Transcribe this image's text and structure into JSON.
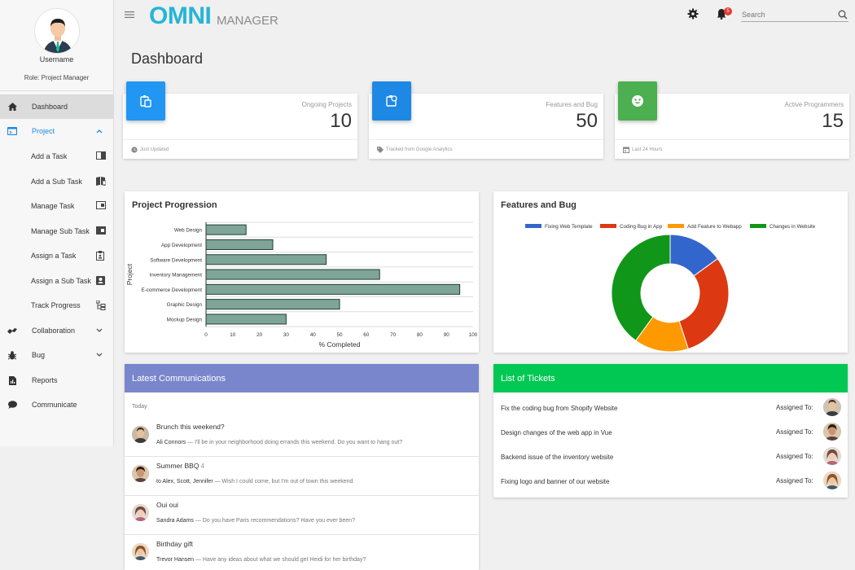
{
  "app": {
    "logo_main": "OMNI",
    "logo_sub": "MANAGER"
  },
  "header": {
    "search_placeholder": "Search",
    "notification_count": "5"
  },
  "profile": {
    "username": "Username",
    "role": "Role: Project Manager"
  },
  "sidebar": {
    "items": [
      {
        "label": "Dashboard",
        "icon": "home-icon"
      },
      {
        "label": "Project",
        "icon": "project-icon"
      },
      {
        "label": "Collaboration",
        "icon": "collaboration-icon"
      },
      {
        "label": "Bug",
        "icon": "bug-icon"
      },
      {
        "label": "Reports",
        "icon": "reports-icon"
      },
      {
        "label": "Communicate",
        "icon": "chat-icon"
      }
    ],
    "subitems": [
      {
        "label": "Add a Task"
      },
      {
        "label": "Add a Sub Task"
      },
      {
        "label": "Manage Task"
      },
      {
        "label": "Manage Sub Task"
      },
      {
        "label": "Assign a Task"
      },
      {
        "label": "Assign a Sub Task"
      },
      {
        "label": "Track Progress"
      }
    ]
  },
  "page": {
    "title": "Dashboard"
  },
  "stats": [
    {
      "label": "Ongoing Projects",
      "value": "10",
      "footer": "Just Updated",
      "color": "#2196f3"
    },
    {
      "label": "Features and Bug",
      "value": "50",
      "footer": "Tracked from Google Analytics",
      "color": "#1e88e5"
    },
    {
      "label": "Active Programmers",
      "value": "15",
      "footer": "Last 24 Hours",
      "color": "#4caf50"
    }
  ],
  "progress_panel": {
    "title": "Project Progression"
  },
  "features_panel": {
    "title": "Features and Bug"
  },
  "chart_data": [
    {
      "type": "bar",
      "orientation": "horizontal",
      "title": "Project Progression",
      "categories": [
        "Web Design",
        "App Development",
        "Software Development",
        "Inventory Management",
        "E-commerce Development",
        "Graphic Design",
        "Mockup Design"
      ],
      "values": [
        15,
        25,
        45,
        65,
        95,
        50,
        30
      ],
      "xlabel": "% Completed",
      "ylabel": "Project",
      "xlim": [
        0,
        100
      ],
      "xticks": [
        "0",
        "10",
        "20",
        "30",
        "40",
        "50",
        "60",
        "70",
        "80",
        "90",
        "100"
      ],
      "grid": true,
      "bar_color": "#7ea597"
    },
    {
      "type": "pie",
      "donut": true,
      "title": "Features and Bug",
      "categories": [
        "Fixing Web Template",
        "Coding Bug in App",
        "Add Feature to Webapp",
        "Changes in Website"
      ],
      "values": [
        15,
        30,
        15,
        40
      ],
      "colors": [
        "#3366cc",
        "#dc3912",
        "#ff9900",
        "#109618"
      ],
      "legend": "top"
    }
  ],
  "communications": {
    "title": "Latest Communications",
    "header_color": "#7986cb",
    "group": "Today",
    "items": [
      {
        "subject": "Brunch this weekend?",
        "count": "",
        "who": "Ali Connors",
        "text": " — I'll be in your neighborhood doing errands this weekend. Do you want to hang out?"
      },
      {
        "subject": "Summer BBQ",
        "count": "4",
        "who": "to Alex, Scott, Jennifer",
        "text": " — Wish I could come, but I'm out of town this weekend."
      },
      {
        "subject": "Oui oui",
        "count": "",
        "who": "Sandra Adams",
        "text": " — Do you have Paris recommendations? Have you ever been?"
      },
      {
        "subject": "Birthday gift",
        "count": "",
        "who": "Trevor Hansen",
        "text": " — Have any ideas about what we should get Heidi for her birthday?"
      }
    ]
  },
  "tickets": {
    "title": "List of Tickets",
    "header_color": "#00c853",
    "assigned_label": "Assigned To:",
    "items": [
      {
        "name": "Fix the coding bug from Shopify Website"
      },
      {
        "name": "Design changes of the web app in Vue"
      },
      {
        "name": "Backend issue of the inventory website"
      },
      {
        "name": "Fixing logo and banner of our website"
      }
    ]
  }
}
